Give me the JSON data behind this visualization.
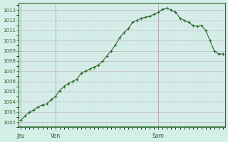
{
  "background_color": "#d4eee8",
  "grid_color_major": "#c0b0c0",
  "grid_color_minor": "#ddd8e8",
  "line_color": "#2d6a2d",
  "marker_color": "#2d6a2d",
  "tick_label_color": "#2d6a2d",
  "axis_color": "#2d6a2d",
  "vline_color": "#777777",
  "ylim": [
    1001.5,
    1013.7
  ],
  "yticks": [
    1002,
    1003,
    1004,
    1005,
    1006,
    1007,
    1008,
    1009,
    1010,
    1011,
    1012,
    1013
  ],
  "day_labels": [
    "Jeu",
    "Ven",
    "Sam"
  ],
  "day_positions": [
    0,
    8,
    32
  ],
  "vline_positions": [
    0,
    8,
    32
  ],
  "x_values": [
    0,
    1,
    2,
    3,
    4,
    5,
    6,
    7,
    8,
    9,
    10,
    11,
    12,
    13,
    14,
    15,
    16,
    17,
    18,
    19,
    20,
    21,
    22,
    23,
    24,
    25,
    26,
    27,
    28,
    29,
    30,
    31,
    32,
    33,
    34,
    35,
    36,
    37,
    38,
    39,
    40,
    41,
    42,
    43,
    44,
    45,
    46,
    47
  ],
  "y_values": [
    1002.2,
    1002.6,
    1003.0,
    1003.2,
    1003.5,
    1003.7,
    1003.8,
    1004.2,
    1004.5,
    1005.1,
    1005.5,
    1005.8,
    1006.0,
    1006.2,
    1006.8,
    1007.0,
    1007.2,
    1007.4,
    1007.6,
    1008.0,
    1008.5,
    1009.0,
    1009.6,
    1010.3,
    1010.8,
    1011.2,
    1011.8,
    1012.0,
    1012.2,
    1012.3,
    1012.4,
    1012.6,
    1012.8,
    1013.1,
    1013.2,
    1013.0,
    1012.8,
    1012.2,
    1012.0,
    1011.8,
    1011.5,
    1011.4,
    1011.5,
    1011.0,
    1010.0,
    1009.0,
    1008.7,
    1008.7
  ]
}
